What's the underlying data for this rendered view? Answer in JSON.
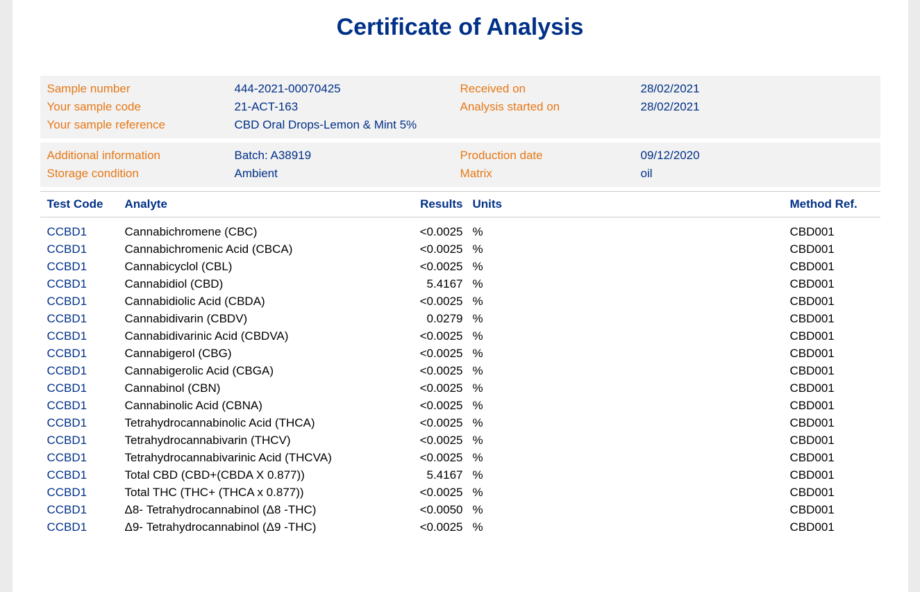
{
  "title": "Certificate of Analysis",
  "meta1": {
    "rows": [
      {
        "label": "Sample number",
        "value": "444-2021-00070425",
        "label2": "Received on",
        "value2": "28/02/2021"
      },
      {
        "label": "Your sample code",
        "value": "21-ACT-163",
        "label2": "Analysis started on",
        "value2": "28/02/2021"
      },
      {
        "label": "Your sample reference",
        "value": "CBD Oral Drops-Lemon & Mint 5%",
        "label2": "",
        "value2": ""
      }
    ]
  },
  "meta2": {
    "rows": [
      {
        "label": "Additional information",
        "value": "Batch: A38919",
        "label2": "Production date",
        "value2": "09/12/2020"
      },
      {
        "label": "Storage condition",
        "value": "Ambient",
        "label2": "Matrix",
        "value2": "oil"
      }
    ]
  },
  "columns": {
    "testcode": "Test Code",
    "analyte": "Analyte",
    "results": "Results",
    "units": "Units",
    "method": "Method Ref."
  },
  "rows": [
    {
      "testcode": "CCBD1",
      "analyte": "Cannabichromene (CBC)",
      "result": "<0.0025",
      "units": "%",
      "method": "CBD001"
    },
    {
      "testcode": "CCBD1",
      "analyte": "Cannabichromenic Acid (CBCA)",
      "result": "<0.0025",
      "units": "%",
      "method": "CBD001"
    },
    {
      "testcode": "CCBD1",
      "analyte": "Cannabicyclol (CBL)",
      "result": "<0.0025",
      "units": "%",
      "method": "CBD001"
    },
    {
      "testcode": "CCBD1",
      "analyte": "Cannabidiol (CBD)",
      "result": "5.4167",
      "units": "%",
      "method": "CBD001"
    },
    {
      "testcode": "CCBD1",
      "analyte": "Cannabidiolic Acid (CBDA)",
      "result": "<0.0025",
      "units": "%",
      "method": "CBD001"
    },
    {
      "testcode": "CCBD1",
      "analyte": "Cannabidivarin (CBDV)",
      "result": "0.0279",
      "units": "%",
      "method": "CBD001"
    },
    {
      "testcode": "CCBD1",
      "analyte": "Cannabidivarinic Acid (CBDVA)",
      "result": "<0.0025",
      "units": "%",
      "method": "CBD001"
    },
    {
      "testcode": "CCBD1",
      "analyte": "Cannabigerol (CBG)",
      "result": "<0.0025",
      "units": "%",
      "method": "CBD001"
    },
    {
      "testcode": "CCBD1",
      "analyte": "Cannabigerolic Acid (CBGA)",
      "result": "<0.0025",
      "units": "%",
      "method": "CBD001"
    },
    {
      "testcode": "CCBD1",
      "analyte": "Cannabinol (CBN)",
      "result": "<0.0025",
      "units": "%",
      "method": "CBD001"
    },
    {
      "testcode": "CCBD1",
      "analyte": "Cannabinolic Acid (CBNA)",
      "result": "<0.0025",
      "units": "%",
      "method": "CBD001"
    },
    {
      "testcode": "CCBD1",
      "analyte": "Tetrahydrocannabinolic Acid (THCA)",
      "result": "<0.0025",
      "units": "%",
      "method": "CBD001"
    },
    {
      "testcode": "CCBD1",
      "analyte": "Tetrahydrocannabivarin (THCV)",
      "result": "<0.0025",
      "units": "%",
      "method": "CBD001"
    },
    {
      "testcode": "CCBD1",
      "analyte": "Tetrahydrocannabivarinic Acid (THCVA)",
      "result": "<0.0025",
      "units": "%",
      "method": "CBD001"
    },
    {
      "testcode": "CCBD1",
      "analyte": "Total CBD (CBD+(CBDA X 0.877))",
      "result": "5.4167",
      "units": "%",
      "method": "CBD001"
    },
    {
      "testcode": "CCBD1",
      "analyte": "Total THC (THC+ (THCA x 0.877))",
      "result": "<0.0025",
      "units": "%",
      "method": "CBD001"
    },
    {
      "testcode": "CCBD1",
      "analyte": "Δ8- Tetrahydrocannabinol (Δ8 -THC)",
      "result": "<0.0050",
      "units": "%",
      "method": "CBD001"
    },
    {
      "testcode": "CCBD1",
      "analyte": "Δ9- Tetrahydrocannabinol (Δ9 -THC)",
      "result": "<0.0025",
      "units": "%",
      "method": "CBD001"
    }
  ]
}
